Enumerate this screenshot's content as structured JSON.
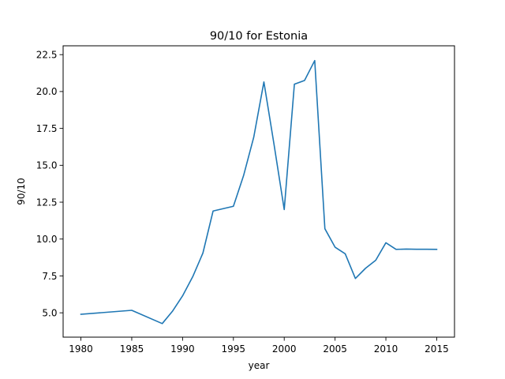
{
  "chart_data": {
    "type": "line",
    "title": "90/10 for Estonia",
    "xlabel": "year",
    "ylabel": "90/10",
    "xlim": [
      1978.25,
      2016.75
    ],
    "ylim": [
      3.35,
      23.1
    ],
    "xticks": [
      1980,
      1985,
      1990,
      1995,
      2000,
      2005,
      2010,
      2015
    ],
    "yticks": [
      5.0,
      7.5,
      10.0,
      12.5,
      15.0,
      17.5,
      20.0,
      22.5
    ],
    "ytick_labels": [
      "5.0",
      "7.5",
      "10.0",
      "12.5",
      "15.0",
      "17.5",
      "20.0",
      "22.5"
    ],
    "grid": false,
    "series": [
      {
        "color": "#1f77b4",
        "x": [
          1980,
          1985,
          1988,
          1989,
          1990,
          1991,
          1992,
          1993,
          1995,
          1996,
          1997,
          1998,
          1999,
          2000,
          2001,
          2002,
          2003,
          2004,
          2005,
          2006,
          2007,
          2008,
          2009,
          2010,
          2011,
          2012,
          2013,
          2014,
          2015
        ],
        "y": [
          4.9,
          5.17,
          4.27,
          5.1,
          6.15,
          7.45,
          9.05,
          11.9,
          12.22,
          14.3,
          16.9,
          20.65,
          16.4,
          12.0,
          20.5,
          20.75,
          22.1,
          10.7,
          9.45,
          9.0,
          7.33,
          8.02,
          8.56,
          9.75,
          9.3,
          9.32,
          9.31,
          9.31,
          9.3
        ]
      }
    ]
  }
}
